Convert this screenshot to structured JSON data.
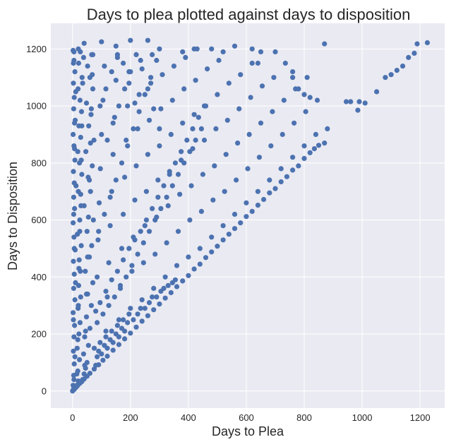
{
  "chart_data": {
    "type": "scatter",
    "title": "Days to plea plotted against days to disposition",
    "xlabel": "Days to Plea",
    "ylabel": "Days to Disposition",
    "xlim": [
      -75,
      1285
    ],
    "ylim": [
      -60,
      1290
    ],
    "xticks": [
      0,
      200,
      400,
      600,
      800,
      1000,
      1200
    ],
    "yticks": [
      0,
      200,
      400,
      600,
      800,
      1000,
      1200
    ],
    "grid": true,
    "legend": "none",
    "style": {
      "plot_background": "#eaeaf2",
      "grid_color": "#ffffff",
      "point_color": "#4c72b0"
    },
    "points": [
      [
        0,
        0
      ],
      [
        2,
        3
      ],
      [
        4,
        8
      ],
      [
        6,
        6
      ],
      [
        8,
        9
      ],
      [
        10,
        12
      ],
      [
        14,
        15
      ],
      [
        18,
        20
      ],
      [
        25,
        27
      ],
      [
        32,
        33
      ],
      [
        40,
        42
      ],
      [
        50,
        52
      ],
      [
        60,
        62
      ],
      [
        75,
        77
      ],
      [
        90,
        92
      ],
      [
        105,
        108
      ],
      [
        120,
        122
      ],
      [
        140,
        143
      ],
      [
        160,
        163
      ],
      [
        180,
        183
      ],
      [
        200,
        203
      ],
      [
        220,
        224
      ],
      [
        240,
        245
      ],
      [
        260,
        264
      ],
      [
        280,
        285
      ],
      [
        300,
        305
      ],
      [
        320,
        326
      ],
      [
        340,
        345
      ],
      [
        360,
        366
      ],
      [
        380,
        386
      ],
      [
        400,
        405
      ],
      [
        420,
        428
      ],
      [
        440,
        445
      ],
      [
        460,
        468
      ],
      [
        480,
        488
      ],
      [
        500,
        508
      ],
      [
        520,
        530
      ],
      [
        540,
        550
      ],
      [
        560,
        570
      ],
      [
        580,
        590
      ],
      [
        600,
        612
      ],
      [
        620,
        630
      ],
      [
        640,
        652
      ],
      [
        660,
        672
      ],
      [
        680,
        695
      ],
      [
        700,
        710
      ],
      [
        720,
        734
      ],
      [
        740,
        752
      ],
      [
        760,
        775
      ],
      [
        780,
        790
      ],
      [
        800,
        816
      ],
      [
        820,
        836
      ],
      [
        835,
        850
      ],
      [
        850,
        862
      ],
      [
        870,
        870
      ],
      [
        880,
        920
      ],
      [
        945,
        1015
      ],
      [
        960,
        1015
      ],
      [
        985,
        985
      ],
      [
        990,
        1015
      ],
      [
        1010,
        1010
      ],
      [
        1050,
        1050
      ],
      [
        1080,
        1100
      ],
      [
        1100,
        1110
      ],
      [
        1120,
        1125
      ],
      [
        1140,
        1140
      ],
      [
        1160,
        1170
      ],
      [
        1180,
        1185
      ],
      [
        1190,
        1218
      ],
      [
        1225,
        1222
      ],
      [
        870,
        1218
      ],
      [
        800,
        1040
      ],
      [
        820,
        1030
      ],
      [
        780,
        1060
      ],
      [
        760,
        1100
      ],
      [
        760,
        1120
      ],
      [
        700,
        1190
      ],
      [
        650,
        1190
      ],
      [
        640,
        1150
      ],
      [
        620,
        1200
      ],
      [
        560,
        1210
      ],
      [
        520,
        1190
      ],
      [
        480,
        1200
      ],
      [
        430,
        1200
      ],
      [
        420,
        1200
      ],
      [
        380,
        1190
      ],
      [
        300,
        1200
      ],
      [
        260,
        1230
      ],
      [
        200,
        1230
      ],
      [
        150,
        1210
      ],
      [
        100,
        1225
      ],
      [
        40,
        1220
      ],
      [
        20,
        1200
      ],
      [
        5,
        1190
      ],
      [
        5,
        40
      ],
      [
        8,
        120
      ],
      [
        3,
        250
      ],
      [
        10,
        380
      ],
      [
        6,
        500
      ],
      [
        4,
        620
      ],
      [
        12,
        720
      ],
      [
        7,
        850
      ],
      [
        9,
        950
      ],
      [
        11,
        1050
      ],
      [
        3,
        1150
      ],
      [
        15,
        60
      ],
      [
        18,
        180
      ],
      [
        20,
        300
      ],
      [
        22,
        430
      ],
      [
        25,
        560
      ],
      [
        28,
        690
      ],
      [
        30,
        810
      ],
      [
        32,
        930
      ],
      [
        35,
        1080
      ],
      [
        38,
        1170
      ],
      [
        42,
        90
      ],
      [
        45,
        210
      ],
      [
        48,
        340
      ],
      [
        52,
        470
      ],
      [
        55,
        610
      ],
      [
        58,
        740
      ],
      [
        62,
        870
      ],
      [
        65,
        990
      ],
      [
        68,
        1110
      ],
      [
        70,
        1180
      ],
      [
        75,
        150
      ],
      [
        80,
        280
      ],
      [
        85,
        400
      ],
      [
        88,
        530
      ],
      [
        92,
        660
      ],
      [
        96,
        780
      ],
      [
        100,
        900
      ],
      [
        105,
        1020
      ],
      [
        110,
        1140
      ],
      [
        115,
        210
      ],
      [
        120,
        330
      ],
      [
        125,
        450
      ],
      [
        130,
        580
      ],
      [
        135,
        700
      ],
      [
        140,
        830
      ],
      [
        145,
        960
      ],
      [
        150,
        1090
      ],
      [
        155,
        1170
      ],
      [
        160,
        250
      ],
      [
        165,
        370
      ],
      [
        170,
        500
      ],
      [
        175,
        620
      ],
      [
        180,
        750
      ],
      [
        185,
        880
      ],
      [
        190,
        1000
      ],
      [
        195,
        1120
      ],
      [
        200,
        290
      ],
      [
        205,
        420
      ],
      [
        210,
        540
      ],
      [
        215,
        670
      ],
      [
        220,
        790
      ],
      [
        225,
        920
      ],
      [
        230,
        1040
      ],
      [
        235,
        1160
      ],
      [
        240,
        320
      ],
      [
        245,
        450
      ],
      [
        250,
        580
      ],
      [
        255,
        700
      ],
      [
        260,
        830
      ],
      [
        265,
        950
      ],
      [
        270,
        1080
      ],
      [
        275,
        1180
      ],
      [
        280,
        360
      ],
      [
        285,
        480
      ],
      [
        290,
        610
      ],
      [
        295,
        740
      ],
      [
        300,
        860
      ],
      [
        305,
        990
      ],
      [
        310,
        1110
      ],
      [
        320,
        400
      ],
      [
        325,
        520
      ],
      [
        330,
        650
      ],
      [
        335,
        770
      ],
      [
        340,
        900
      ],
      [
        345,
        1020
      ],
      [
        350,
        1140
      ],
      [
        360,
        440
      ],
      [
        365,
        560
      ],
      [
        370,
        690
      ],
      [
        375,
        810
      ],
      [
        380,
        940
      ],
      [
        385,
        1060
      ],
      [
        390,
        1170
      ],
      [
        400,
        470
      ],
      [
        405,
        600
      ],
      [
        410,
        720
      ],
      [
        415,
        850
      ],
      [
        420,
        970
      ],
      [
        425,
        1090
      ],
      [
        440,
        500
      ],
      [
        445,
        630
      ],
      [
        450,
        760
      ],
      [
        455,
        880
      ],
      [
        460,
        1000
      ],
      [
        465,
        1130
      ],
      [
        480,
        540
      ],
      [
        485,
        670
      ],
      [
        490,
        790
      ],
      [
        495,
        920
      ],
      [
        500,
        1040
      ],
      [
        505,
        1160
      ],
      [
        520,
        580
      ],
      [
        525,
        700
      ],
      [
        530,
        830
      ],
      [
        535,
        950
      ],
      [
        540,
        1080
      ],
      [
        560,
        620
      ],
      [
        565,
        740
      ],
      [
        570,
        870
      ],
      [
        575,
        990
      ],
      [
        580,
        1110
      ],
      [
        600,
        660
      ],
      [
        605,
        780
      ],
      [
        610,
        900
      ],
      [
        615,
        1030
      ],
      [
        620,
        1150
      ],
      [
        640,
        700
      ],
      [
        645,
        820
      ],
      [
        650,
        940
      ],
      [
        655,
        1070
      ],
      [
        680,
        740
      ],
      [
        685,
        860
      ],
      [
        690,
        980
      ],
      [
        695,
        1100
      ],
      [
        720,
        780
      ],
      [
        725,
        900
      ],
      [
        730,
        1020
      ],
      [
        735,
        1150
      ],
      [
        760,
        820
      ],
      [
        765,
        940
      ],
      [
        770,
        1060
      ],
      [
        800,
        860
      ],
      [
        805,
        980
      ],
      [
        810,
        1100
      ],
      [
        840,
        900
      ],
      [
        845,
        1020
      ],
      [
        2,
        20
      ],
      [
        4,
        55
      ],
      [
        6,
        95
      ],
      [
        3,
        140
      ],
      [
        5,
        190
      ],
      [
        7,
        230
      ],
      [
        2,
        275
      ],
      [
        8,
        320
      ],
      [
        4,
        360
      ],
      [
        6,
        410
      ],
      [
        3,
        455
      ],
      [
        9,
        495
      ],
      [
        5,
        540
      ],
      [
        2,
        590
      ],
      [
        7,
        640
      ],
      [
        4,
        680
      ],
      [
        6,
        730
      ],
      [
        3,
        770
      ],
      [
        8,
        810
      ],
      [
        5,
        860
      ],
      [
        2,
        900
      ],
      [
        7,
        940
      ],
      [
        4,
        990
      ],
      [
        6,
        1030
      ],
      [
        3,
        1080
      ],
      [
        8,
        1120
      ],
      [
        5,
        1160
      ],
      [
        2,
        1195
      ],
      [
        15,
        20
      ],
      [
        20,
        35
      ],
      [
        18,
        70
      ],
      [
        24,
        110
      ],
      [
        16,
        150
      ],
      [
        22,
        200
      ],
      [
        26,
        240
      ],
      [
        19,
        290
      ],
      [
        28,
        330
      ],
      [
        21,
        370
      ],
      [
        27,
        420
      ],
      [
        23,
        460
      ],
      [
        30,
        510
      ],
      [
        17,
        550
      ],
      [
        25,
        600
      ],
      [
        29,
        650
      ],
      [
        20,
        700
      ],
      [
        32,
        760
      ],
      [
        24,
        800
      ],
      [
        18,
        840
      ],
      [
        28,
        890
      ],
      [
        22,
        930
      ],
      [
        31,
        980
      ],
      [
        26,
        1020
      ],
      [
        19,
        1060
      ],
      [
        33,
        1100
      ],
      [
        21,
        1150
      ],
      [
        27,
        1190
      ],
      [
        35,
        40
      ],
      [
        40,
        60
      ],
      [
        45,
        80
      ],
      [
        50,
        100
      ],
      [
        38,
        130
      ],
      [
        55,
        160
      ],
      [
        42,
        190
      ],
      [
        60,
        220
      ],
      [
        48,
        260
      ],
      [
        65,
        300
      ],
      [
        52,
        340
      ],
      [
        70,
        380
      ],
      [
        44,
        420
      ],
      [
        58,
        470
      ],
      [
        66,
        510
      ],
      [
        50,
        560
      ],
      [
        72,
        600
      ],
      [
        40,
        650
      ],
      [
        62,
        700
      ],
      [
        54,
        750
      ],
      [
        68,
        790
      ],
      [
        46,
        840
      ],
      [
        74,
        880
      ],
      [
        56,
        930
      ],
      [
        64,
        970
      ],
      [
        48,
        1010
      ],
      [
        70,
        1060
      ],
      [
        60,
        1100
      ],
      [
        52,
        1140
      ],
      [
        66,
        1180
      ],
      [
        80,
        90
      ],
      [
        85,
        120
      ],
      [
        90,
        140
      ],
      [
        95,
        170
      ],
      [
        100,
        130
      ],
      [
        110,
        160
      ],
      [
        115,
        190
      ],
      [
        120,
        150
      ],
      [
        130,
        180
      ],
      [
        135,
        210
      ],
      [
        140,
        170
      ],
      [
        150,
        200
      ],
      [
        155,
        230
      ],
      [
        160,
        190
      ],
      [
        170,
        220
      ],
      [
        175,
        250
      ],
      [
        180,
        210
      ],
      [
        190,
        240
      ],
      [
        195,
        270
      ],
      [
        210,
        250
      ],
      [
        225,
        270
      ],
      [
        235,
        290
      ],
      [
        250,
        290
      ],
      [
        265,
        310
      ],
      [
        275,
        330
      ],
      [
        290,
        330
      ],
      [
        305,
        350
      ],
      [
        315,
        360
      ],
      [
        330,
        370
      ],
      [
        345,
        380
      ],
      [
        355,
        390
      ],
      [
        85,
        240
      ],
      [
        95,
        310
      ],
      [
        105,
        270
      ],
      [
        115,
        350
      ],
      [
        125,
        300
      ],
      [
        135,
        390
      ],
      [
        145,
        330
      ],
      [
        155,
        420
      ],
      [
        165,
        360
      ],
      [
        175,
        460
      ],
      [
        185,
        400
      ],
      [
        195,
        500
      ],
      [
        205,
        440
      ],
      [
        215,
        530
      ],
      [
        225,
        480
      ],
      [
        235,
        560
      ],
      [
        245,
        520
      ],
      [
        255,
        600
      ],
      [
        265,
        560
      ],
      [
        275,
        640
      ],
      [
        285,
        600
      ],
      [
        295,
        680
      ],
      [
        305,
        640
      ],
      [
        315,
        720
      ],
      [
        325,
        680
      ],
      [
        335,
        760
      ],
      [
        345,
        720
      ],
      [
        355,
        800
      ],
      [
        365,
        760
      ],
      [
        375,
        840
      ],
      [
        385,
        800
      ],
      [
        395,
        880
      ],
      [
        405,
        840
      ],
      [
        415,
        920
      ],
      [
        425,
        880
      ],
      [
        435,
        960
      ],
      [
        445,
        920
      ],
      [
        455,
        1000
      ],
      [
        90,
        560
      ],
      [
        110,
        620
      ],
      [
        130,
        680
      ],
      [
        150,
        740
      ],
      [
        170,
        800
      ],
      [
        190,
        860
      ],
      [
        210,
        920
      ],
      [
        230,
        980
      ],
      [
        250,
        1040
      ],
      [
        270,
        1100
      ],
      [
        290,
        1160
      ],
      [
        95,
        1000
      ],
      [
        115,
        1060
      ],
      [
        135,
        1120
      ],
      [
        155,
        1180
      ],
      [
        175,
        1150
      ],
      [
        195,
        1080
      ],
      [
        215,
        1010
      ],
      [
        120,
        880
      ],
      [
        140,
        940
      ],
      [
        160,
        1000
      ],
      [
        180,
        1060
      ],
      [
        200,
        1120
      ],
      [
        220,
        1180
      ],
      [
        240,
        1130
      ],
      [
        260,
        1060
      ],
      [
        280,
        990
      ],
      [
        300,
        920
      ]
    ]
  }
}
